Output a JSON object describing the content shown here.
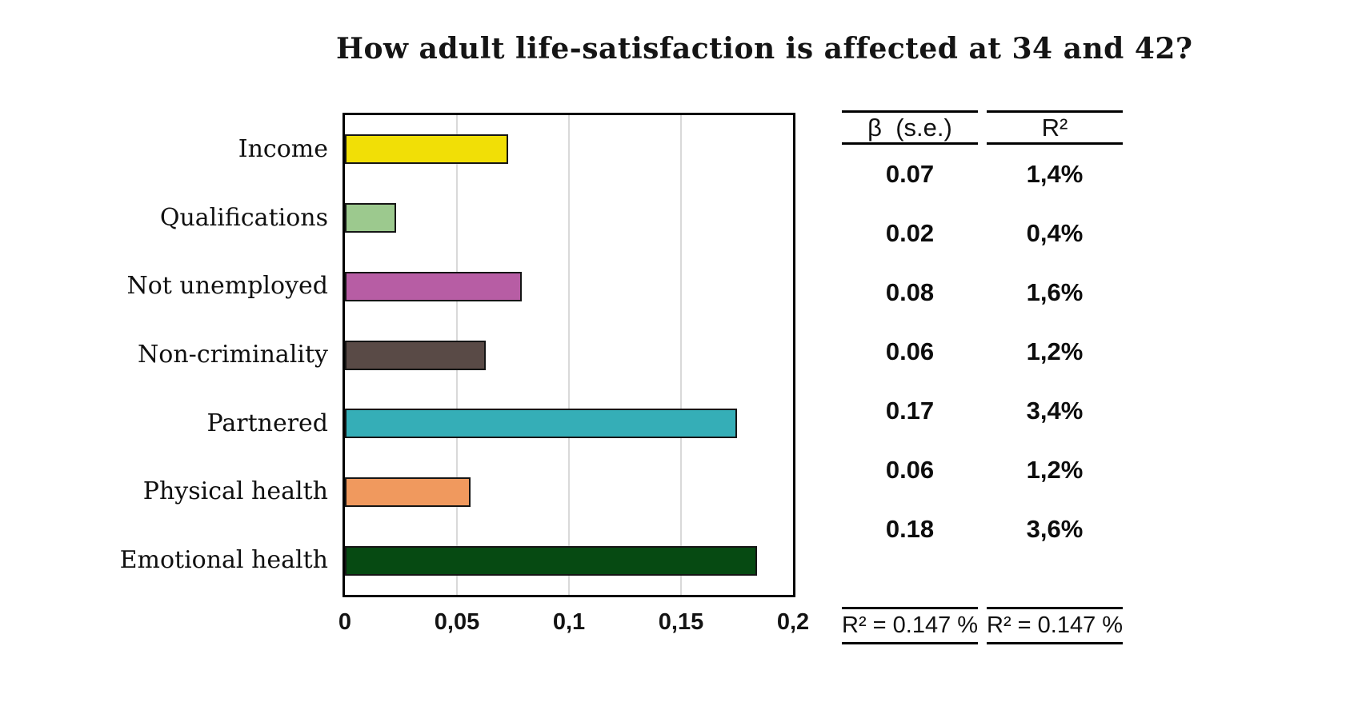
{
  "title": "How adult life-satisfaction is affected at 34 and 42?",
  "chart_data": {
    "type": "bar",
    "orientation": "horizontal",
    "title": "How adult life-satisfaction is affected at 34 and 42?",
    "categories": [
      "Income",
      "Qualifications",
      "Not unemployed",
      "Non-criminality",
      "Partnered",
      "Physical health",
      "Emotional health"
    ],
    "values": [
      0.073,
      0.023,
      0.079,
      0.063,
      0.175,
      0.056,
      0.184
    ],
    "bar_colors": [
      "#F1DF06",
      "#9CC98E",
      "#B75DA4",
      "#594A46",
      "#35AEB7",
      "#F0995E",
      "#064A12"
    ],
    "xlabel": "",
    "ylabel": "",
    "xlim": [
      0,
      0.2
    ],
    "x_ticks": [
      "0",
      "0,05",
      "0,1",
      "0,15",
      "0,2"
    ],
    "x_tick_values": [
      0,
      0.05,
      0.1,
      0.15,
      0.2
    ],
    "grid": true,
    "legend": false,
    "grid_color": "#D9D9D9",
    "bar_border_color": "#151515"
  },
  "stats_table": {
    "beta_header": "β  (s.e.)",
    "r2_header": "R²",
    "rows": [
      {
        "beta": "0.07",
        "r2": "1,4%"
      },
      {
        "beta": "0.02",
        "r2": "0,4%"
      },
      {
        "beta": "0.08",
        "r2": "1,6%"
      },
      {
        "beta": "0.06",
        "r2": "1,2%"
      },
      {
        "beta": "0.17",
        "r2": "3,4%"
      },
      {
        "beta": "0.06",
        "r2": "1,2%"
      },
      {
        "beta": "0.18",
        "r2": "3,6%"
      }
    ],
    "footer_beta": "R² = 0.147 %",
    "footer_r2": "R² = 0.147 %"
  }
}
